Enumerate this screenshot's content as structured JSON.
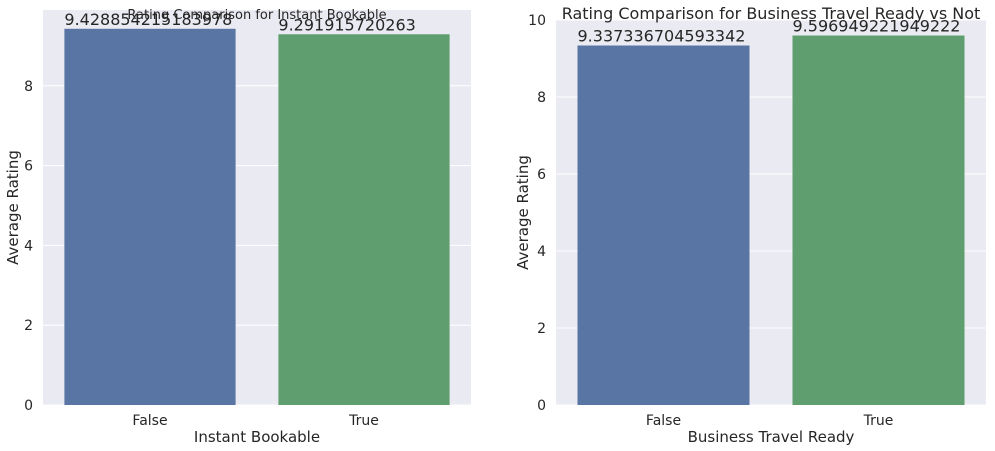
{
  "chart_data": [
    {
      "type": "bar",
      "title": "Rating Comparison for Instant Bookable",
      "xlabel": "Instant Bookable",
      "ylabel": "Average Rating",
      "categories": [
        "False",
        "True"
      ],
      "values": [
        9.428854215183978,
        9.291915720263
      ],
      "value_labels": [
        "9.428854215183978",
        "9.291915720263"
      ],
      "ylim": [
        0,
        9.9
      ],
      "yticks": [
        0,
        2,
        4,
        6,
        8
      ],
      "grid": true,
      "colors": [
        "#5975a4",
        "#5f9e6e"
      ]
    },
    {
      "type": "bar",
      "title": "Rating Comparison for Business Travel Ready vs Not",
      "xlabel": "Business Travel Ready",
      "ylabel": "Average Rating",
      "categories": [
        "False",
        "True"
      ],
      "values": [
        9.337336704593342,
        9.596949221949222
      ],
      "value_labels": [
        "9.337336704593342",
        "9.596949221949222"
      ],
      "ylim": [
        0,
        10
      ],
      "yticks": [
        0,
        2,
        4,
        6,
        8,
        10
      ],
      "grid": true,
      "colors": [
        "#5975a4",
        "#5f9e6e"
      ]
    }
  ]
}
